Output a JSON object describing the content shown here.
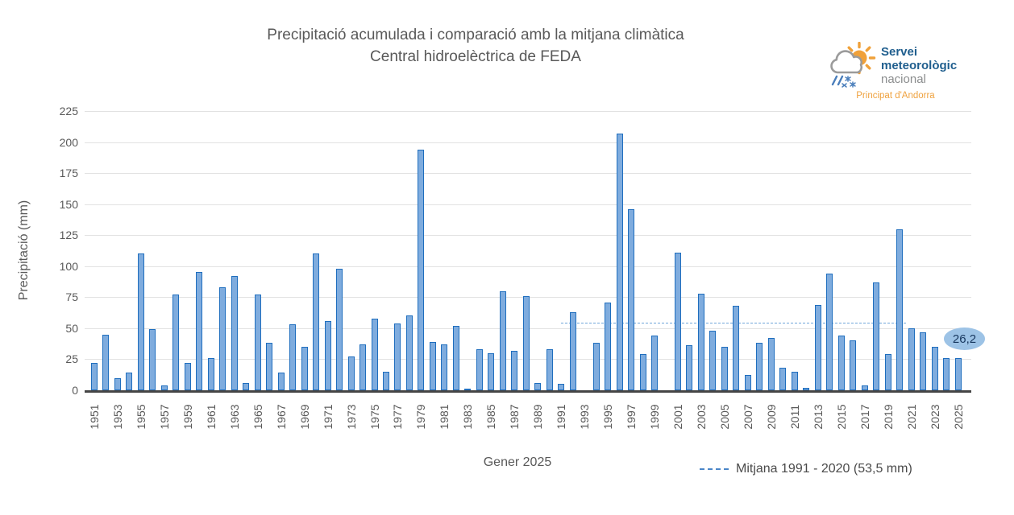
{
  "title": {
    "line1": "Precipitació acumulada i comparació amb la mitjana climàtica",
    "line2": "Central hidroelèctrica de FEDA"
  },
  "logo": {
    "name_line1": "Servei",
    "name_line2": "meteorològic",
    "name_line3": "nacional",
    "subtitle": "Principat d'Andorra"
  },
  "chart_data": {
    "type": "bar",
    "title": "Precipitació acumulada i comparació amb la mitjana climàtica",
    "subtitle": "Central hidroelèctrica de FEDA",
    "xlabel": "Gener 2025",
    "ylabel": "Precipitació (mm)",
    "ylim": [
      0,
      225
    ],
    "grid": true,
    "legend_position": "bottom-right",
    "yticks": [
      0,
      25,
      50,
      75,
      100,
      125,
      150,
      175,
      200,
      225
    ],
    "xticks": [
      1951,
      1953,
      1955,
      1957,
      1959,
      1961,
      1963,
      1965,
      1967,
      1969,
      1971,
      1973,
      1975,
      1977,
      1979,
      1981,
      1983,
      1985,
      1987,
      1989,
      1991,
      1993,
      1995,
      1997,
      1999,
      2001,
      2003,
      2005,
      2007,
      2009,
      2011,
      2013,
      2015,
      2017,
      2019,
      2021,
      2023,
      2025
    ],
    "categories": [
      1951,
      1952,
      1953,
      1954,
      1955,
      1956,
      1957,
      1958,
      1959,
      1960,
      1961,
      1962,
      1963,
      1964,
      1965,
      1966,
      1967,
      1968,
      1969,
      1970,
      1971,
      1972,
      1973,
      1974,
      1975,
      1976,
      1977,
      1978,
      1979,
      1980,
      1981,
      1982,
      1983,
      1984,
      1985,
      1986,
      1987,
      1988,
      1989,
      1990,
      1991,
      1992,
      1993,
      1994,
      1995,
      1996,
      1997,
      1998,
      1999,
      2000,
      2001,
      2002,
      2003,
      2004,
      2005,
      2006,
      2007,
      2008,
      2009,
      2010,
      2011,
      2012,
      2013,
      2014,
      2015,
      2016,
      2017,
      2018,
      2019,
      2020,
      2021,
      2022,
      2023,
      2024,
      2025
    ],
    "values": [
      22,
      45,
      10,
      14,
      110,
      49,
      4,
      77,
      22,
      95,
      26,
      83,
      92,
      6,
      77,
      38,
      14,
      53,
      35,
      110,
      56,
      98,
      27,
      37,
      58,
      15,
      54,
      60,
      194,
      39,
      37,
      52,
      1,
      33,
      30,
      80,
      32,
      76,
      6,
      33,
      5,
      63,
      0,
      38,
      71,
      207,
      146,
      29,
      44,
      0,
      111,
      36,
      78,
      48,
      35,
      68,
      12,
      38,
      42,
      18,
      15,
      2,
      69,
      94,
      44,
      40,
      4,
      87,
      29,
      130,
      50,
      47,
      35,
      26,
      26.2
    ],
    "series_name": "Precipitació acumulada",
    "mean_line": {
      "value": 53.5,
      "start_year": 1991,
      "end_year": 2020,
      "label": "Mitjana 1991 - 2020 (53,5 mm)",
      "color": "#6FA5D9"
    },
    "annotation": {
      "text": "26,2",
      "value": 26.2,
      "year": 2025
    },
    "bar_fill": "#7FACDE",
    "bar_border": "#1F6EBE"
  },
  "colors": {
    "grid": "#E2E2E2",
    "axis_line": "#454545",
    "tick_text": "#595959",
    "annotation_bubble": "#9DC3E6",
    "annotation_text": "#17375E",
    "legend_dash": "#4A86C8",
    "logo_blue": "#1F5E8E",
    "logo_gray": "#8B8D8E",
    "logo_orange": "#EFA23F"
  }
}
